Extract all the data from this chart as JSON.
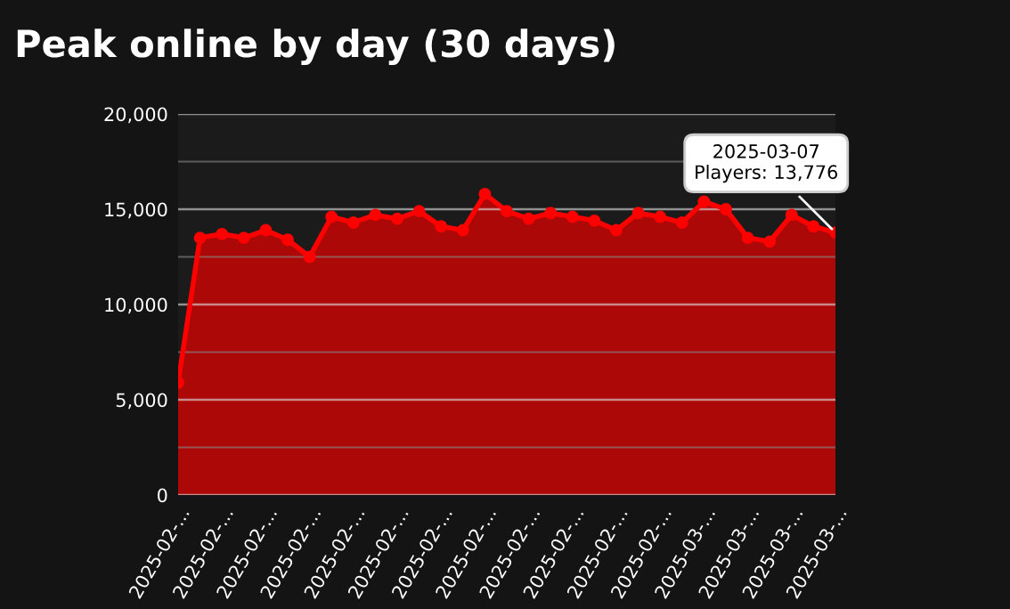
{
  "chart_data": {
    "type": "area",
    "title": "Peak online by day (30 days)",
    "x": [
      "2025-02-05",
      "2025-02-06",
      "2025-02-07",
      "2025-02-08",
      "2025-02-09",
      "2025-02-10",
      "2025-02-11",
      "2025-02-12",
      "2025-02-13",
      "2025-02-14",
      "2025-02-15",
      "2025-02-16",
      "2025-02-17",
      "2025-02-18",
      "2025-02-19",
      "2025-02-20",
      "2025-02-21",
      "2025-02-22",
      "2025-02-23",
      "2025-02-24",
      "2025-02-25",
      "2025-02-26",
      "2025-02-27",
      "2025-02-28",
      "2025-03-01",
      "2025-03-02",
      "2025-03-03",
      "2025-03-04",
      "2025-03-05",
      "2025-03-06",
      "2025-03-07"
    ],
    "series": [
      {
        "color": "#ff0000",
        "values": [
          5900,
          13500,
          13700,
          13500,
          13900,
          13400,
          12500,
          14600,
          14300,
          14700,
          14500,
          14900,
          14100,
          13900,
          15800,
          14900,
          14500,
          14800,
          14600,
          14400,
          13900,
          14800,
          14600,
          14300,
          15400,
          15000,
          13500,
          13300,
          14700,
          14100,
          13776
        ]
      }
    ],
    "xlim": [
      "2025-02-05",
      "2025-03-07"
    ],
    "xticks": [
      {
        "value": "2025-02-05",
        "label": "2025-02-..."
      },
      {
        "value": "2025-02-07",
        "label": "2025-02-..."
      },
      {
        "value": "2025-02-09",
        "label": "2025-02-..."
      },
      {
        "value": "2025-02-11",
        "label": "2025-02-..."
      },
      {
        "value": "2025-02-13",
        "label": "2025-02-..."
      },
      {
        "value": "2025-02-15",
        "label": "2025-02-..."
      },
      {
        "value": "2025-02-17",
        "label": "2025-02-..."
      },
      {
        "value": "2025-02-19",
        "label": "2025-02-..."
      },
      {
        "value": "2025-02-21",
        "label": "2025-02-..."
      },
      {
        "value": "2025-02-23",
        "label": "2025-02-..."
      },
      {
        "value": "2025-02-25",
        "label": "2025-02-..."
      },
      {
        "value": "2025-02-27",
        "label": "2025-02-..."
      },
      {
        "value": "2025-03-01",
        "label": "2025-03-..."
      },
      {
        "value": "2025-03-03",
        "label": "2025-03-..."
      },
      {
        "value": "2025-03-05",
        "label": "2025-03-..."
      },
      {
        "value": "2025-03-07",
        "label": "2025-03-..."
      }
    ],
    "ylim": [
      0,
      20000
    ],
    "yticks": [
      {
        "value": 0,
        "label": "0"
      },
      {
        "value": 2500,
        "label": null
      },
      {
        "value": 5000,
        "label": "5,000"
      },
      {
        "value": 7500,
        "label": null
      },
      {
        "value": 10000,
        "label": "10,000"
      },
      {
        "value": 12500,
        "label": null
      },
      {
        "value": 15000,
        "label": "15,000"
      },
      {
        "value": 17500,
        "label": null
      },
      {
        "value": 20000,
        "label": "20,000"
      }
    ],
    "grid": "y",
    "marker": "circle",
    "line_style": "solid",
    "annotations": [
      {
        "text": "2025-03-07\nPlayers: 13,776",
        "x": "2025-03-07",
        "y": 13776
      }
    ]
  }
}
